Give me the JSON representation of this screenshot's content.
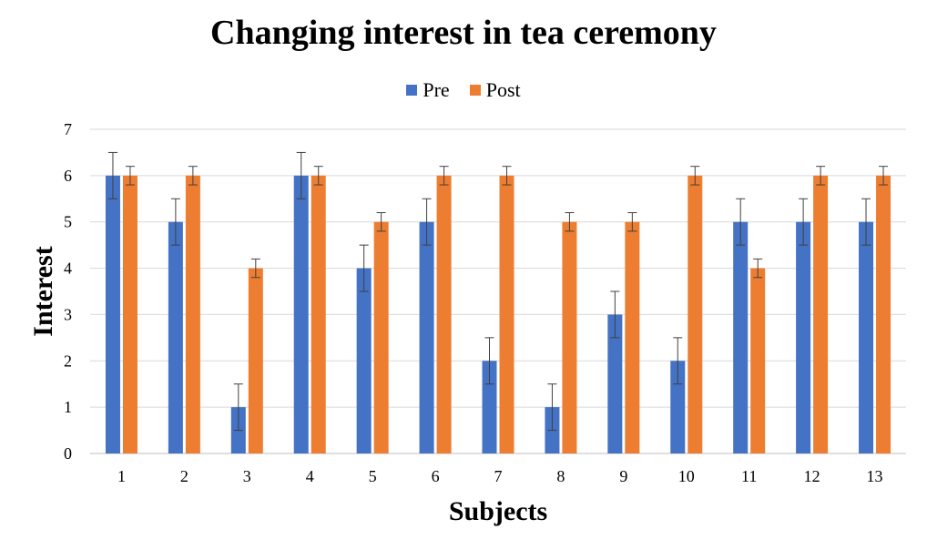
{
  "chart_data": {
    "type": "bar",
    "title": "Changing interest in tea ceremony",
    "xlabel": "Subjects",
    "ylabel": "Interest",
    "categories": [
      "1",
      "2",
      "3",
      "4",
      "5",
      "6",
      "7",
      "8",
      "9",
      "10",
      "11",
      "12",
      "13"
    ],
    "series": [
      {
        "name": "Pre",
        "color": "#4472C4",
        "values": [
          6,
          5,
          1,
          6,
          4,
          5,
          2,
          1,
          3,
          2,
          5,
          5,
          5
        ],
        "error": [
          0.5,
          0.5,
          0.5,
          0.5,
          0.5,
          0.5,
          0.5,
          0.5,
          0.5,
          0.5,
          0.5,
          0.5,
          0.5
        ]
      },
      {
        "name": "Post",
        "color": "#ED7D31",
        "values": [
          6,
          6,
          4,
          6,
          5,
          6,
          6,
          5,
          5,
          6,
          4,
          6,
          6
        ],
        "error": [
          0.2,
          0.2,
          0.2,
          0.2,
          0.2,
          0.2,
          0.2,
          0.2,
          0.2,
          0.2,
          0.2,
          0.2,
          0.2
        ]
      }
    ],
    "ylim": [
      0,
      7
    ],
    "yticks": [
      "0",
      "1",
      "2",
      "3",
      "4",
      "5",
      "6",
      "7"
    ],
    "grid": true,
    "legend_position": "top"
  }
}
